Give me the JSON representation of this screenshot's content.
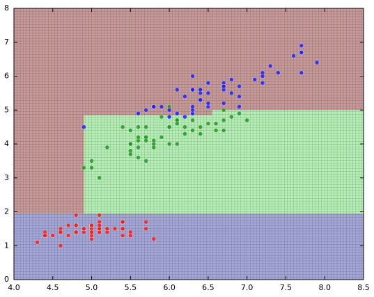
{
  "chart_data": {
    "type": "scatter",
    "xlim": [
      4.0,
      8.5
    ],
    "ylim": [
      0,
      8
    ],
    "xticks": [
      {
        "value": 4.0,
        "label": "4.0"
      },
      4.5,
      {
        "value": 5.0,
        "label": "5.0"
      },
      5.5,
      {
        "value": 6.0,
        "label": "6.0"
      },
      6.5,
      {
        "value": 7.0,
        "label": "7.0"
      },
      7.5,
      {
        "value": 8.0,
        "label": "8.0"
      },
      8.5
    ],
    "yticks": [
      0,
      1,
      2,
      3,
      4,
      5,
      6,
      7,
      8
    ],
    "regions": [
      {
        "color": "#c89a9a",
        "x": [
          4.0,
          8.5
        ],
        "y": [
          0,
          8
        ]
      },
      {
        "color": "#a4a7d8",
        "x": [
          4.0,
          8.5
        ],
        "y": [
          0,
          1.95
        ]
      },
      {
        "color": "#b6f0b6",
        "x": [
          4.9,
          8.5
        ],
        "y": [
          1.95,
          4.85
        ]
      },
      {
        "color": "#b6f0b6",
        "x": [
          6.55,
          8.5
        ],
        "y": [
          4.85,
          5.0
        ]
      }
    ],
    "series": [
      {
        "color": "#ee2020",
        "x": [
          5.1,
          4.9,
          4.7,
          4.6,
          5.0,
          5.4,
          4.6,
          5.0,
          4.4,
          4.9,
          5.4,
          4.8,
          4.8,
          4.3,
          5.8,
          5.7,
          5.4,
          5.1,
          5.7,
          5.1,
          5.4,
          5.1,
          4.6,
          5.1,
          4.8,
          5.0,
          5.0,
          5.2,
          5.2,
          4.7,
          4.8,
          5.4,
          5.2,
          5.5,
          4.9,
          5.0,
          5.5,
          4.9,
          4.4,
          5.1,
          5.0,
          4.5,
          4.4,
          5.0,
          5.1,
          4.8,
          5.1,
          4.6,
          5.3,
          5.0
        ],
        "y": [
          1.4,
          1.4,
          1.3,
          1.5,
          1.4,
          1.7,
          1.4,
          1.5,
          1.4,
          1.5,
          1.5,
          1.6,
          1.4,
          1.1,
          1.2,
          1.5,
          1.3,
          1.4,
          1.7,
          1.5,
          1.7,
          1.5,
          1.0,
          1.7,
          1.9,
          1.6,
          1.6,
          1.5,
          1.4,
          1.6,
          1.6,
          1.5,
          1.5,
          1.4,
          1.5,
          1.2,
          1.3,
          1.5,
          1.3,
          1.5,
          1.3,
          1.3,
          1.3,
          1.6,
          1.9,
          1.4,
          1.6,
          1.4,
          1.5,
          1.4
        ]
      },
      {
        "color": "#1f9a1f",
        "x": [
          7.0,
          6.4,
          6.9,
          5.5,
          6.5,
          5.7,
          6.3,
          4.9,
          6.6,
          5.2,
          5.0,
          5.9,
          6.0,
          6.1,
          5.6,
          6.7,
          5.6,
          5.8,
          6.2,
          5.6,
          5.9,
          6.1,
          6.3,
          6.1,
          6.4,
          6.6,
          6.8,
          6.7,
          6.0,
          5.7,
          5.5,
          5.5,
          5.8,
          6.0,
          5.4,
          6.0,
          6.7,
          6.3,
          5.6,
          5.5,
          5.5,
          6.1,
          5.8,
          5.0,
          5.6,
          5.7,
          5.7,
          6.2,
          5.1,
          5.7
        ],
        "y": [
          4.7,
          4.5,
          4.9,
          4.0,
          4.6,
          4.5,
          4.7,
          3.3,
          4.6,
          3.9,
          3.5,
          4.2,
          4.0,
          4.7,
          3.6,
          4.4,
          4.5,
          4.1,
          4.5,
          3.9,
          4.8,
          4.0,
          4.9,
          4.7,
          4.3,
          4.4,
          4.8,
          5.0,
          4.5,
          3.5,
          3.8,
          3.7,
          3.9,
          5.1,
          4.5,
          4.5,
          4.7,
          4.4,
          4.1,
          4.0,
          4.4,
          4.6,
          4.0,
          3.3,
          4.2,
          4.2,
          4.2,
          4.3,
          3.0,
          4.1
        ]
      },
      {
        "color": "#2222ee",
        "x": [
          6.3,
          5.8,
          7.1,
          6.3,
          6.5,
          7.6,
          4.9,
          7.3,
          6.7,
          7.2,
          6.5,
          6.4,
          6.8,
          5.7,
          5.8,
          6.4,
          6.5,
          7.7,
          7.7,
          6.0,
          6.9,
          5.6,
          7.7,
          6.3,
          6.7,
          7.2,
          6.2,
          6.1,
          6.4,
          7.2,
          7.4,
          7.9,
          6.4,
          6.3,
          6.1,
          7.7,
          6.3,
          6.4,
          6.0,
          6.9,
          6.7,
          6.9,
          5.8,
          6.8,
          6.7,
          6.7,
          6.3,
          6.5,
          6.2,
          5.9
        ],
        "y": [
          6.0,
          5.1,
          5.9,
          5.6,
          5.8,
          6.6,
          4.5,
          6.3,
          5.8,
          6.1,
          5.1,
          5.3,
          5.5,
          5.0,
          5.1,
          5.3,
          5.5,
          6.7,
          6.9,
          5.0,
          5.7,
          4.9,
          6.7,
          4.9,
          5.7,
          6.0,
          4.8,
          4.9,
          5.6,
          5.8,
          6.1,
          6.4,
          5.6,
          5.1,
          5.6,
          6.1,
          5.6,
          5.5,
          4.8,
          5.4,
          5.6,
          5.1,
          5.1,
          5.9,
          5.7,
          5.2,
          5.0,
          5.2,
          5.4,
          5.1
        ]
      }
    ]
  }
}
